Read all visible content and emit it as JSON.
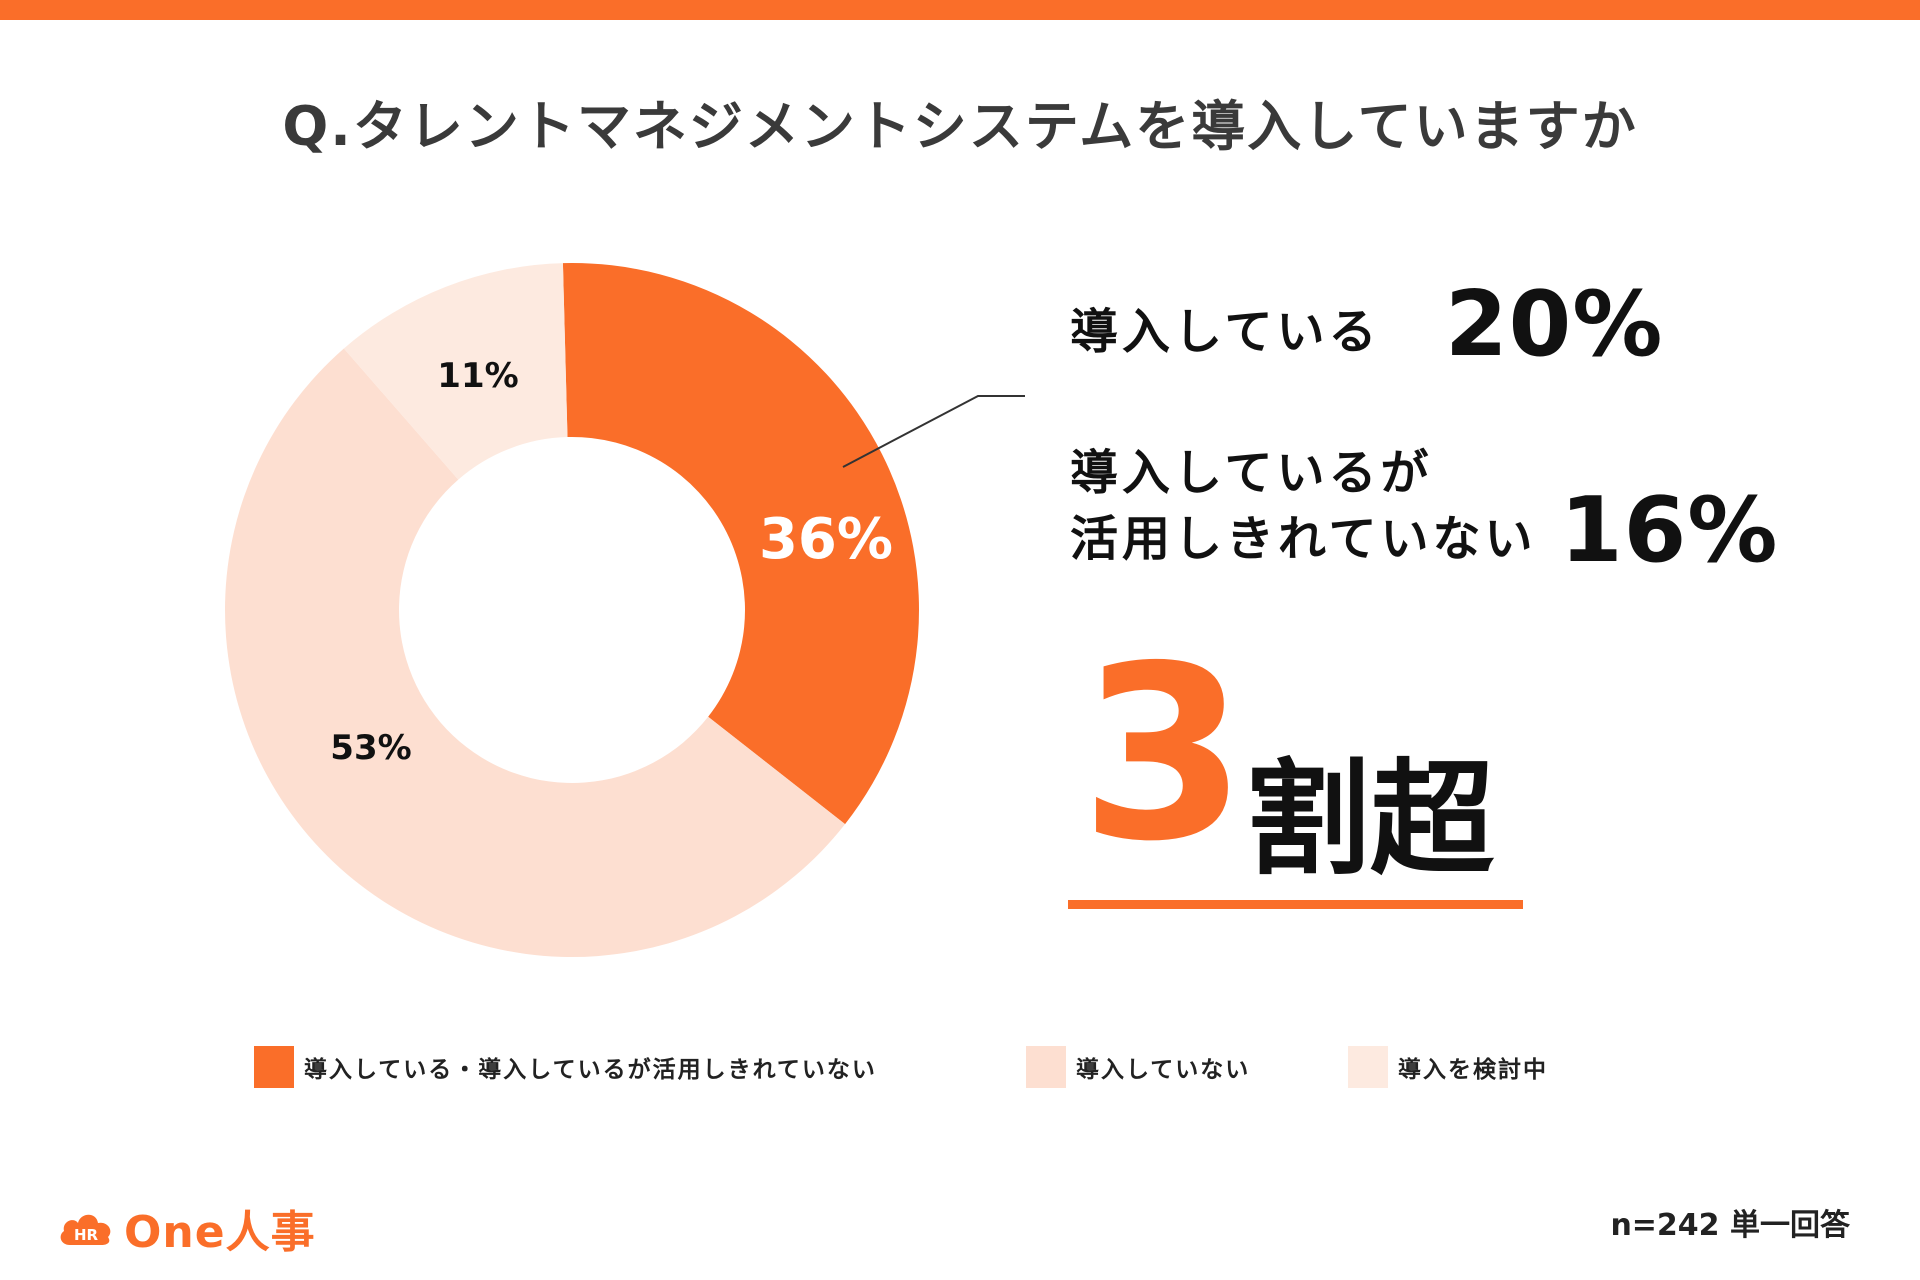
{
  "title": "Q.タレントマネジメントシステムを導入していますか",
  "colors": {
    "accent": "#FA6E29",
    "light": "#FDDFD1",
    "lighter": "#FDEAE0",
    "text": "#222222"
  },
  "chart_data": {
    "type": "pie",
    "categories": [
      "導入している・導入しているが活用しきれていない",
      "導入していない",
      "導入を検討中"
    ],
    "values": [
      36,
      53,
      11
    ],
    "value_labels": [
      "36%",
      "53%",
      "11%"
    ],
    "colors": [
      "#FA6E29",
      "#FDDFD1",
      "#FDEAE0"
    ],
    "donut": true,
    "legend_position": "bottom"
  },
  "callouts": [
    {
      "label": "導入している",
      "value": "20%"
    },
    {
      "label_line1": "導入しているが",
      "label_line2": "活用しきれていない",
      "value": "16%"
    }
  ],
  "headline": {
    "number": "3",
    "suffix": "割超"
  },
  "legend": [
    {
      "label": "導入している・導入しているが活用しきれていない",
      "color": "#FA6E29"
    },
    {
      "label": "導入していない",
      "color": "#FDDFD1"
    },
    {
      "label": "導入を検討中",
      "color": "#FDEAE0"
    }
  ],
  "logo": {
    "badge": "HR",
    "text": "One人事"
  },
  "footnote": "n=242 単一回答"
}
